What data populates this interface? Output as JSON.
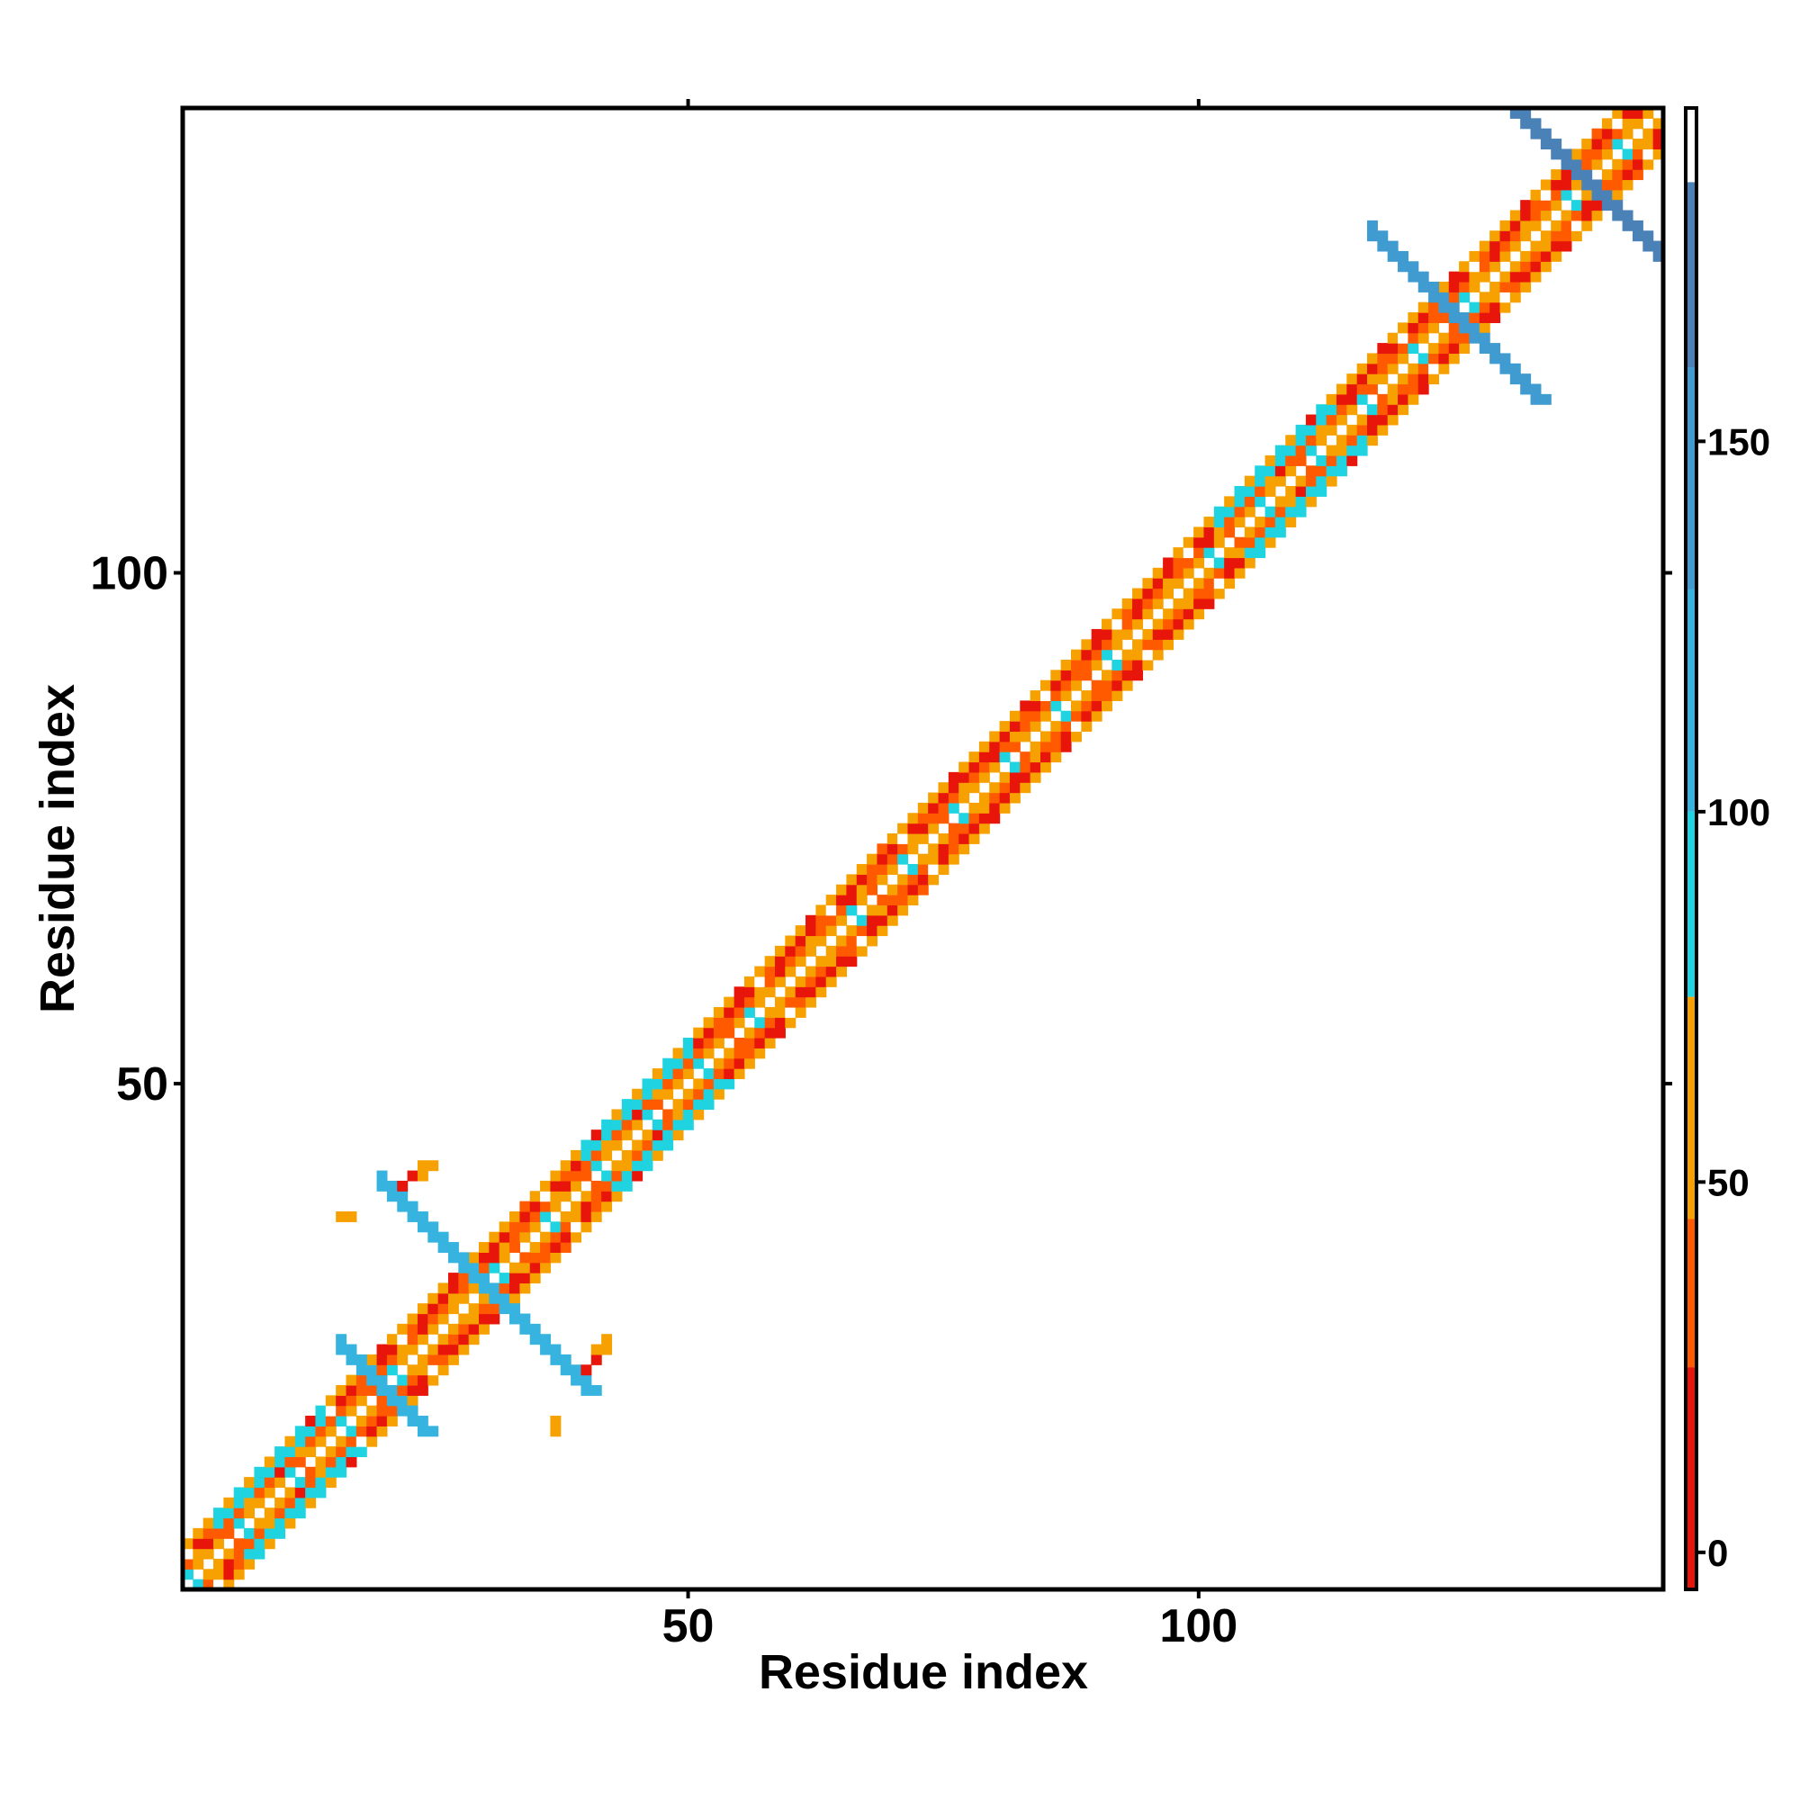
{
  "chart_data": {
    "type": "heatmap",
    "title": "",
    "xlabel": "Residue index",
    "ylabel": "Residue index",
    "xlim": [
      1,
      145
    ],
    "ylim": [
      1,
      145
    ],
    "x_ticks": [
      50,
      100
    ],
    "y_ticks": [
      50,
      100
    ],
    "colorbar": {
      "ticks": [
        0,
        50,
        100,
        150
      ],
      "range": [
        -5,
        195
      ],
      "stops": [
        {
          "from": -5,
          "to": 25,
          "color": "#e8150a"
        },
        {
          "from": 25,
          "to": 45,
          "color": "#ff5a00"
        },
        {
          "from": 45,
          "to": 75,
          "color": "#f7a100"
        },
        {
          "from": 75,
          "to": 100,
          "color": "#1fd3e0"
        },
        {
          "from": 100,
          "to": 130,
          "color": "#36b3de"
        },
        {
          "from": 130,
          "to": 160,
          "color": "#3f9bd0"
        },
        {
          "from": 160,
          "to": 185,
          "color": "#4a82b8"
        },
        {
          "from": 185,
          "to": 195,
          "color": "#ffffff"
        }
      ]
    },
    "grid": false,
    "diagonal_band": {
      "residues": [
        1,
        145
      ],
      "offsets": [
        1,
        2,
        3,
        4
      ],
      "typical_values_by_offset": {
        "1": 60,
        "2": 40,
        "3": 10,
        "4": 45
      }
    },
    "helix_like_segments": [
      {
        "start": 4,
        "end": 14,
        "value": 90
      },
      {
        "start": 40,
        "end": 50,
        "value": 95
      },
      {
        "start": 102,
        "end": 113,
        "value": 90
      }
    ],
    "sheet_contacts": [
      {
        "center_x": 20,
        "center_y": 20,
        "arm": 4,
        "value": 120
      },
      {
        "center_x": 30,
        "center_y": 30,
        "arm": 10,
        "value": 110
      },
      {
        "center_x": 125,
        "center_y": 125,
        "arm": 8,
        "value": 150
      },
      {
        "center_x": 138,
        "center_y": 138,
        "arm": 9,
        "value": 160
      }
    ],
    "isolated_contacts": [
      {
        "x": 16,
        "y": 37,
        "value": 55
      },
      {
        "x": 17,
        "y": 37,
        "value": 55
      },
      {
        "x": 23,
        "y": 41,
        "value": 60
      },
      {
        "x": 24,
        "y": 41,
        "value": 60
      },
      {
        "x": 22,
        "y": 40,
        "value": 20
      },
      {
        "x": 42,
        "y": 24,
        "value": 60
      },
      {
        "x": 42,
        "y": 25,
        "value": 60
      },
      {
        "x": 41,
        "y": 23,
        "value": 20
      },
      {
        "x": 37,
        "y": 16,
        "value": 55
      },
      {
        "x": 37,
        "y": 17,
        "value": 55
      }
    ]
  }
}
